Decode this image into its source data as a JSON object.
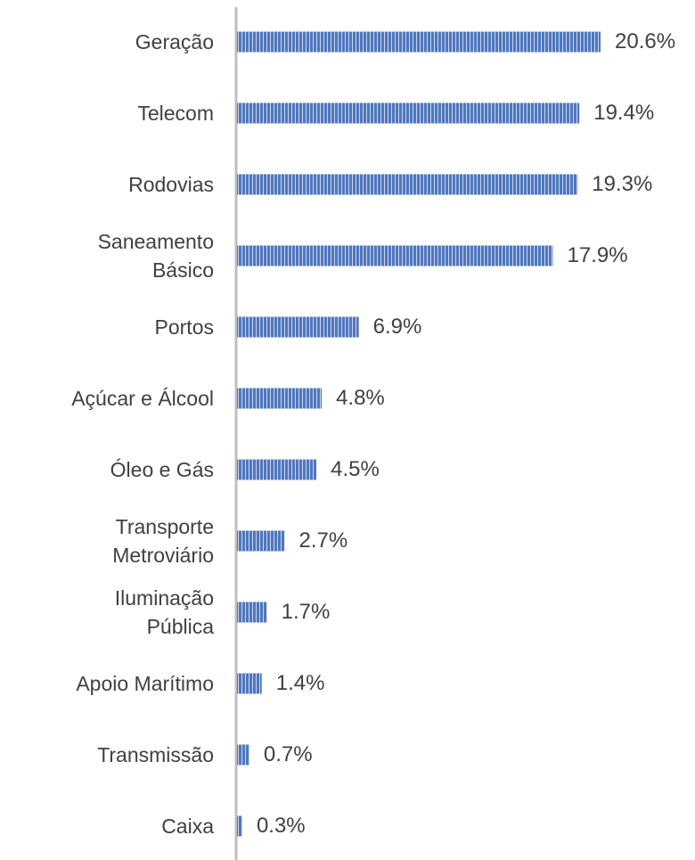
{
  "chart_data": {
    "type": "bar",
    "orientation": "horizontal",
    "categories": [
      "Geração",
      "Telecom",
      "Rodovias",
      "Saneamento Básico",
      "Portos",
      "Açúcar e Álcool",
      "Óleo e Gás",
      "Transporte Metroviário",
      "Iluminação Pública",
      "Apoio Marítimo",
      "Transmissão",
      "Caixa"
    ],
    "values": [
      20.6,
      19.4,
      19.3,
      17.9,
      6.9,
      4.8,
      4.5,
      2.7,
      1.7,
      1.4,
      0.7,
      0.3
    ],
    "value_labels": [
      "20.6%",
      "19.4%",
      "19.3%",
      "17.9%",
      "6.9%",
      "4.8%",
      "4.5%",
      "2.7%",
      "1.7%",
      "1.4%",
      "0.7%",
      "0.3%"
    ],
    "color": "#4f77bd"
  }
}
